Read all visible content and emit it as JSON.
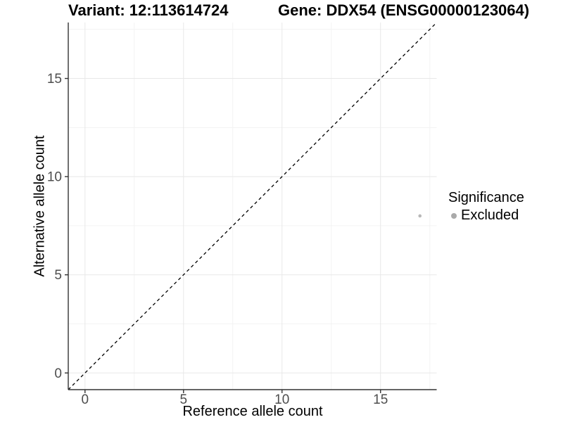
{
  "chart_data": {
    "type": "scatter",
    "titles": {
      "variant": "Variant: 12:113614724",
      "gene": "Gene: DDX54 (ENSG00000123064)"
    },
    "xlabel": "Reference allele count",
    "ylabel": "Alternative allele count",
    "xlim": [
      -0.85,
      17.85
    ],
    "ylim": [
      -0.85,
      17.85
    ],
    "x_ticks": [
      0,
      5,
      10,
      15
    ],
    "y_ticks": [
      0,
      5,
      10,
      15
    ],
    "x_minor_ticks": [
      2.5,
      7.5,
      12.5,
      17.5
    ],
    "y_minor_ticks": [
      2.5,
      7.5,
      12.5,
      17.5
    ],
    "grid": "major and minor gridlines, light gray on white",
    "series": [
      {
        "name": "Excluded",
        "color": "#b8b8b8",
        "point_radius": 2.3,
        "points": [
          {
            "x": 17,
            "y": 8
          }
        ]
      }
    ],
    "reference_line": {
      "kind": "identity y=x",
      "linetype": "dashed",
      "color": "#000000"
    },
    "legend": {
      "title": "Significance",
      "position": "right",
      "items": [
        {
          "label": "Excluded",
          "color": "#aaaaaa"
        }
      ]
    },
    "colors": {
      "background": "#ffffff",
      "axis_line": "#333333",
      "tick_mark": "#333333",
      "tick_label": "#4d4d4d",
      "grid_major": "#e8e8e8",
      "grid_minor": "#f3f3f3"
    }
  }
}
